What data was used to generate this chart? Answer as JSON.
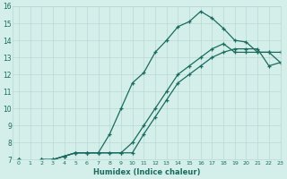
{
  "xlabel": "Humidex (Indice chaleur)",
  "xlim": [
    -0.5,
    23
  ],
  "ylim": [
    7,
    16
  ],
  "xticks": [
    0,
    1,
    2,
    3,
    4,
    5,
    6,
    7,
    8,
    9,
    10,
    11,
    12,
    13,
    14,
    15,
    16,
    17,
    18,
    19,
    20,
    21,
    22,
    23
  ],
  "yticks": [
    7,
    8,
    9,
    10,
    11,
    12,
    13,
    14,
    15,
    16
  ],
  "bg_color": "#d4eeea",
  "grid_color": "#b8d8d4",
  "line_color": "#1a6b60",
  "line1_x": [
    0,
    1,
    2,
    3,
    4,
    5,
    6,
    7,
    8,
    9,
    10,
    11,
    12,
    13,
    14,
    15,
    16,
    17,
    18,
    19,
    20,
    21,
    22,
    23
  ],
  "line1_y": [
    7.0,
    6.8,
    7.0,
    7.0,
    7.2,
    7.4,
    7.4,
    7.4,
    8.5,
    10.0,
    11.5,
    12.1,
    13.3,
    14.0,
    14.8,
    15.1,
    15.7,
    15.3,
    14.7,
    14.0,
    13.9,
    13.3,
    13.3,
    13.3
  ],
  "line2_x": [
    0,
    1,
    2,
    3,
    4,
    5,
    6,
    7,
    8,
    9,
    10,
    11,
    12,
    13,
    14,
    15,
    16,
    17,
    18,
    19,
    20,
    21,
    22,
    23
  ],
  "line2_y": [
    7.0,
    6.8,
    7.0,
    7.0,
    7.2,
    7.4,
    7.4,
    7.4,
    7.4,
    7.4,
    8.0,
    9.0,
    10.0,
    11.0,
    12.0,
    12.5,
    13.0,
    13.5,
    13.8,
    13.3,
    13.3,
    13.3,
    13.3,
    12.7
  ],
  "line3_x": [
    0,
    1,
    2,
    3,
    4,
    5,
    6,
    7,
    8,
    9,
    10,
    11,
    12,
    13,
    14,
    15,
    16,
    17,
    18,
    19,
    20,
    21,
    22,
    23
  ],
  "line3_y": [
    7.0,
    6.8,
    7.0,
    7.0,
    7.2,
    7.4,
    7.4,
    7.4,
    7.4,
    7.4,
    7.4,
    8.5,
    9.5,
    10.5,
    11.5,
    12.0,
    12.5,
    13.0,
    13.3,
    13.5,
    13.5,
    13.5,
    12.5,
    12.7
  ]
}
